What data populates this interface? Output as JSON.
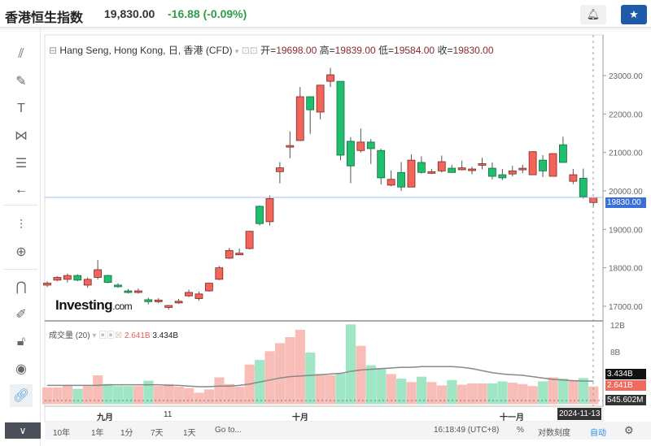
{
  "header": {
    "title": "香港恒生指数",
    "price": "19,830.00",
    "change": "-16.88",
    "change_pct": "(-0.09%)",
    "bell_icon": "bell-plus-icon",
    "star_icon": "star-icon"
  },
  "toolbar": {
    "items": [
      "crosshair-lines-icon",
      "brush-icon",
      "text-icon",
      "pattern-icon",
      "fib-icon",
      "arrow-left-icon",
      "indicators-icon",
      "zoom-in-icon",
      "magnet-icon",
      "lock-drawing-icon",
      "unlock-icon",
      "eye-icon",
      "link-icon"
    ]
  },
  "legend": {
    "symbol": "Hang Seng, Hong Kong, 日, 香港 (CFD)",
    "open_label": "开=",
    "open": "19698.00",
    "high_label": "高=",
    "high": "19839.00",
    "low_label": "低=",
    "low": "19584.00",
    "close_label": "收=",
    "close": "19830.00"
  },
  "volume_legend": {
    "name": "成交量 (20)",
    "volume": "2.641B",
    "ma": "3.434B"
  },
  "watermark": {
    "brand": "Investing",
    "suffix": ".com"
  },
  "colors": {
    "up": "#f2655a",
    "down": "#1fbf6e",
    "vol_up": "#f9bdb7",
    "vol_down": "#9fe6c4",
    "last_price": "#3b6fd8"
  },
  "chart_data": {
    "type": "candlestick",
    "price_axis": {
      "ticks": [
        "23000.00",
        "22000.00",
        "21000.00",
        "20000.00",
        "19000.00",
        "18000.00",
        "17000.00"
      ],
      "range": [
        16600,
        23400
      ]
    },
    "last_price": "19830.00",
    "volume_axis": {
      "ticks": [
        "12B",
        "8B"
      ],
      "labels": {
        "ma": "3.434B",
        "volume": "2.641B",
        "min": "545.602M"
      }
    },
    "time_labels": [
      {
        "label": "九月",
        "index": 5.6
      },
      {
        "label": "11",
        "index": 11.9
      },
      {
        "label": "十月",
        "index": 25
      },
      {
        "label": "十一月",
        "index": 45.7
      }
    ],
    "cursor_date": "2024-11-13",
    "ohlc": [
      [
        17550,
        17650,
        17500,
        17600
      ],
      [
        17680,
        17780,
        17650,
        17750
      ],
      [
        17700,
        17850,
        17620,
        17800
      ],
      [
        17800,
        17830,
        17650,
        17680
      ],
      [
        17550,
        17750,
        17480,
        17700
      ],
      [
        17750,
        18200,
        17700,
        17950
      ],
      [
        17800,
        17820,
        17600,
        17620
      ],
      [
        17550,
        17600,
        17480,
        17520
      ],
      [
        17400,
        17450,
        17330,
        17390
      ],
      [
        17390,
        17460,
        17330,
        17400
      ],
      [
        17170,
        17220,
        17050,
        17120
      ],
      [
        17150,
        17210,
        17080,
        17160
      ],
      [
        16970,
        17030,
        16910,
        17020
      ],
      [
        17100,
        17190,
        17060,
        17130
      ],
      [
        17270,
        17430,
        17240,
        17360
      ],
      [
        17200,
        17380,
        17140,
        17320
      ],
      [
        17400,
        17600,
        17380,
        17600
      ],
      [
        17700,
        18050,
        17680,
        18000
      ],
      [
        18250,
        18520,
        18230,
        18450
      ],
      [
        18380,
        18500,
        18360,
        18380
      ],
      [
        18500,
        18950,
        18480,
        18950
      ],
      [
        19600,
        19620,
        19100,
        19150
      ],
      [
        19200,
        19880,
        19100,
        19800
      ],
      [
        20500,
        20750,
        20200,
        20600
      ],
      [
        21180,
        21550,
        20850,
        21180
      ],
      [
        21310,
        22700,
        21300,
        22450
      ],
      [
        22450,
        22450,
        21480,
        22110
      ],
      [
        22050,
        22750,
        21860,
        22750
      ],
      [
        22850,
        23200,
        22700,
        23020
      ],
      [
        22850,
        22850,
        20800,
        20930
      ],
      [
        21290,
        21400,
        20200,
        20650
      ],
      [
        21050,
        21620,
        21000,
        21270
      ],
      [
        21270,
        21350,
        20700,
        21100
      ],
      [
        21050,
        21100,
        20170,
        20340
      ],
      [
        20150,
        20530,
        20120,
        20300
      ],
      [
        20480,
        20750,
        20000,
        20100
      ],
      [
        20100,
        20950,
        20100,
        20800
      ],
      [
        20740,
        20900,
        20450,
        20480
      ],
      [
        20470,
        20570,
        20440,
        20500
      ],
      [
        20520,
        20920,
        20480,
        20760
      ],
      [
        20590,
        20680,
        20470,
        20480
      ],
      [
        20550,
        20790,
        20530,
        20600
      ],
      [
        20570,
        20630,
        20430,
        20570
      ],
      [
        20680,
        20860,
        20560,
        20710
      ],
      [
        20590,
        20740,
        20300,
        20380
      ],
      [
        20420,
        20570,
        20280,
        20340
      ],
      [
        20440,
        20650,
        20380,
        20520
      ],
      [
        20590,
        20680,
        20460,
        20590
      ],
      [
        20420,
        21020,
        20420,
        21020
      ],
      [
        20800,
        20930,
        20360,
        20520
      ],
      [
        20380,
        20970,
        20380,
        20970
      ],
      [
        21200,
        21410,
        20740,
        20740
      ],
      [
        20250,
        20570,
        20180,
        20420
      ],
      [
        20330,
        20580,
        19800,
        19850
      ],
      [
        19698,
        19839,
        19584,
        19830
      ]
    ],
    "volume": [
      2.5,
      2.5,
      2.9,
      2.3,
      2.7,
      4.3,
      3.0,
      2.7,
      2.7,
      2.7,
      3.5,
      2.7,
      3.0,
      2.6,
      2.4,
      1.7,
      2.2,
      4.0,
      3.0,
      2.6,
      5.9,
      6.6,
      7.9,
      9.1,
      10.0,
      11.1,
      7.7,
      4.5,
      4.3,
      4.6,
      11.9,
      8.7,
      5.8,
      5.4,
      4.5,
      3.8,
      3.3,
      4.1,
      3.3,
      2.8,
      3.6,
      2.9,
      3.1,
      3.1,
      3.1,
      3.4,
      3.2,
      3.0,
      2.7,
      3.4,
      4.0,
      3.8,
      3.6,
      3.9,
      2.641
    ],
    "volume_ma20": [
      2.8,
      2.8,
      2.8,
      2.8,
      2.8,
      2.8,
      2.9,
      2.9,
      2.9,
      2.9,
      2.9,
      2.9,
      2.8,
      2.8,
      2.7,
      2.6,
      2.6,
      2.7,
      2.7,
      2.8,
      3.0,
      3.3,
      3.6,
      3.9,
      4.1,
      4.2,
      4.3,
      4.4,
      4.5,
      4.6,
      4.9,
      5.1,
      5.2,
      5.3,
      5.4,
      5.5,
      5.5,
      5.6,
      5.6,
      5.6,
      5.6,
      5.5,
      5.3,
      5.0,
      4.7,
      4.5,
      4.4,
      4.3,
      4.1,
      3.9,
      3.7,
      3.6,
      3.5,
      3.45,
      3.434
    ]
  },
  "bottom_bar": {
    "ranges": [
      "10年",
      "1年",
      "1分",
      "7天",
      "1天"
    ],
    "goto": "Go to...",
    "time": "16:18:49 (UTC+8)",
    "percent": "%",
    "log": "对数刻度",
    "auto": "自动",
    "settings_icon": "gear-icon"
  }
}
